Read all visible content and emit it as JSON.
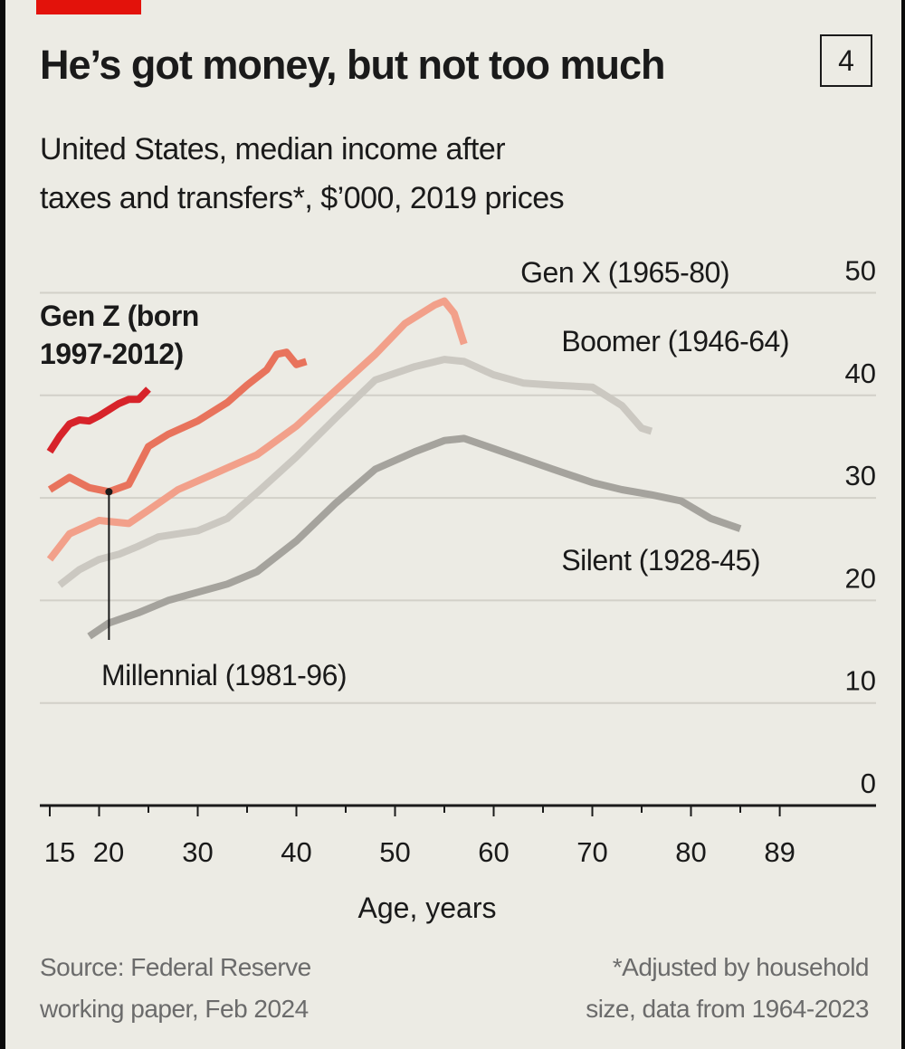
{
  "header": {
    "title": "He’s got money, but not too much",
    "badge": "4",
    "subtitle_line1": "United States, median income after",
    "subtitle_line2": "taxes and transfers*, $’000, 2019 prices"
  },
  "footer": {
    "source_line1": "Source: Federal Reserve",
    "source_line2": "working paper, Feb 2024",
    "note_line1": "*Adjusted by household",
    "note_line2": "size, data from 1964-2023"
  },
  "colors": {
    "background": "#ecebe4",
    "accent": "#e3120b",
    "gridline": "#d2d0c8",
    "text": "#1a1a1a",
    "muted": "#6b6b6b"
  },
  "chart_data": {
    "type": "line",
    "title": "He’s got money, but not too much",
    "subtitle": "United States, median income after taxes and transfers*, $’000, 2019 prices",
    "xlabel": "Age, years",
    "ylabel": "",
    "xlim": [
      15,
      89
    ],
    "ylim": [
      0,
      50
    ],
    "x_ticks": [
      15,
      20,
      30,
      40,
      50,
      60,
      70,
      80,
      89
    ],
    "y_ticks": [
      0,
      10,
      20,
      30,
      40,
      50
    ],
    "y_axis_position": "right",
    "grid": true,
    "legend": "direct labels",
    "series": [
      {
        "name": "Silent (1928-45)",
        "label_lines": [
          "Silent (1928-45)"
        ],
        "color": "#a5a39d",
        "x": [
          19,
          21,
          24,
          27,
          30,
          33,
          36,
          40,
          44,
          48,
          52,
          55,
          57,
          60,
          63,
          66,
          70,
          73,
          76,
          79,
          82,
          85
        ],
        "y": [
          16.5,
          17.8,
          18.8,
          20.0,
          20.8,
          21.6,
          22.8,
          25.8,
          29.5,
          32.8,
          34.5,
          35.6,
          35.8,
          34.8,
          33.8,
          32.8,
          31.5,
          30.8,
          30.3,
          29.7,
          28.0,
          27.0
        ]
      },
      {
        "name": "Boomer (1946-64)",
        "label_lines": [
          "Boomer (1946-64)"
        ],
        "color": "#cbc8c1",
        "x": [
          16,
          18,
          20,
          22,
          24,
          26,
          30,
          33,
          36,
          40,
          44,
          48,
          52,
          55,
          57,
          60,
          63,
          66,
          70,
          73,
          75,
          76
        ],
        "y": [
          21.5,
          23.0,
          24.0,
          24.5,
          25.3,
          26.2,
          26.8,
          28.0,
          30.5,
          34.0,
          37.8,
          41.5,
          42.8,
          43.5,
          43.3,
          42.0,
          41.2,
          41.0,
          40.8,
          39.0,
          36.8,
          36.5
        ]
      },
      {
        "name": "Gen X (1965-80)",
        "label_lines": [
          "Gen X (1965-80)"
        ],
        "color": "#f2a08a",
        "x": [
          15,
          17,
          20,
          23,
          25,
          28,
          32,
          36,
          40,
          44,
          48,
          51,
          54,
          55,
          56,
          57
        ],
        "y": [
          24.0,
          26.5,
          27.8,
          27.5,
          28.8,
          30.8,
          32.5,
          34.2,
          37.0,
          40.5,
          44.0,
          47.0,
          48.8,
          49.2,
          48.0,
          45.0
        ]
      },
      {
        "name": "Millennial (1981-96)",
        "label_lines": [
          "Millennial (1981-96)"
        ],
        "color": "#e8735c",
        "x": [
          15,
          17,
          19,
          21,
          23,
          25,
          27,
          30,
          33,
          35,
          37,
          38,
          39,
          40,
          41
        ],
        "y": [
          30.8,
          32.0,
          31.0,
          30.6,
          31.3,
          35.0,
          36.2,
          37.5,
          39.3,
          41.0,
          42.5,
          44.0,
          44.2,
          43.0,
          43.3
        ]
      },
      {
        "name": "Gen Z (born 1997-2012)",
        "label_lines": [
          "Gen Z (born",
          "1997-2012)"
        ],
        "color": "#d7232a",
        "x": [
          15,
          16,
          17,
          18,
          19,
          20,
          21,
          22,
          23,
          24,
          25
        ],
        "y": [
          34.5,
          36.0,
          37.2,
          37.6,
          37.5,
          38.0,
          38.6,
          39.2,
          39.6,
          39.6,
          40.6
        ]
      }
    ]
  }
}
